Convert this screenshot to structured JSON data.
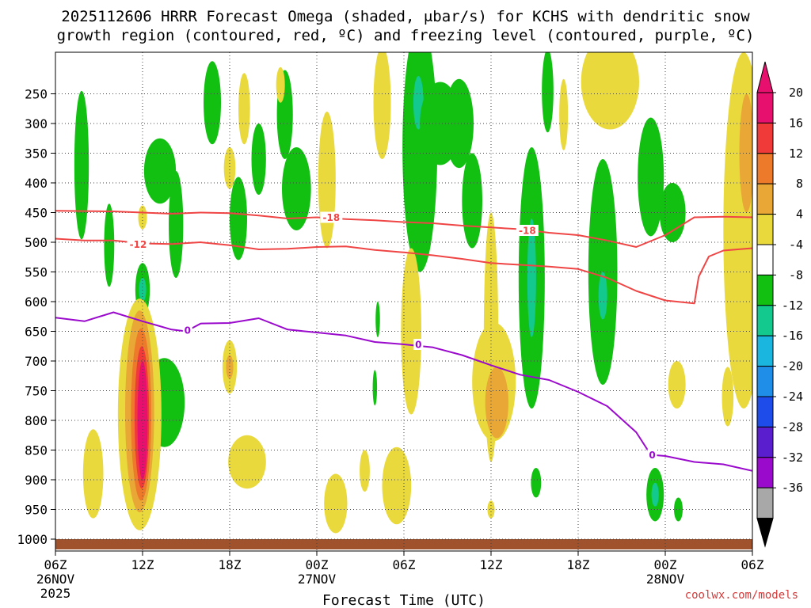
{
  "chart_data": {
    "type": "heatmap",
    "title_line1": "2025112606 HRRR Forecast Omega (shaded, μbar/s) for KCHS with dendritic snow",
    "title_line2": "growth region (contoured, red, ºC) and freezing level (contoured, purple, ºC)",
    "xlabel": "Forecast Time (UTC)",
    "credit": "coolwx.com/models",
    "x_range_hours": [
      0,
      48
    ],
    "y_range_mb": [
      180,
      1020
    ],
    "y_ticks": [
      {
        "mb": 250,
        "label": "250"
      },
      {
        "mb": 300,
        "label": "300"
      },
      {
        "mb": 350,
        "label": "350"
      },
      {
        "mb": 400,
        "label": "400"
      },
      {
        "mb": 450,
        "label": "450"
      },
      {
        "mb": 500,
        "label": "500"
      },
      {
        "mb": 550,
        "label": "550"
      },
      {
        "mb": 600,
        "label": "600"
      },
      {
        "mb": 650,
        "label": "650"
      },
      {
        "mb": 700,
        "label": "700"
      },
      {
        "mb": 750,
        "label": "750"
      },
      {
        "mb": 800,
        "label": "800"
      },
      {
        "mb": 850,
        "label": "850"
      },
      {
        "mb": 900,
        "label": "900"
      },
      {
        "mb": 950,
        "label": "950"
      },
      {
        "mb": 1000,
        "label": "1000"
      }
    ],
    "x_ticks": [
      {
        "hour": 0,
        "label": "06Z",
        "date": "26NOV",
        "year": "2025"
      },
      {
        "hour": 6,
        "label": "12Z"
      },
      {
        "hour": 12,
        "label": "18Z"
      },
      {
        "hour": 18,
        "label": "00Z",
        "date": "27NOV"
      },
      {
        "hour": 24,
        "label": "06Z"
      },
      {
        "hour": 30,
        "label": "12Z"
      },
      {
        "hour": 36,
        "label": "18Z"
      },
      {
        "hour": 42,
        "label": "00Z",
        "date": "28NOV"
      },
      {
        "hour": 48,
        "label": "06Z"
      }
    ],
    "colorbar": {
      "ticks": [
        "20",
        "16",
        "12",
        "8",
        "4",
        "-4",
        "-8",
        "-12",
        "-16",
        "-20",
        "-24",
        "-28",
        "-32",
        "-36"
      ],
      "colors": [
        "#e8106e",
        "#f03a3a",
        "#ec7a2a",
        "#e9a836",
        "#e9d93c",
        "#ffffff",
        "#12c012",
        "#14c98e",
        "#1ab6e0",
        "#1e8ee8",
        "#1e4cea",
        "#5a1ecf",
        "#9a0acc",
        "#a8a8a8"
      ],
      "top_color": "#e8106e",
      "bottom_color": "#000000"
    },
    "contours": [
      {
        "name": "-18",
        "color": "#ef4545",
        "hours": [
          0,
          4,
          8,
          10,
          12,
          14,
          16,
          18,
          20,
          22,
          24,
          26,
          28,
          30,
          32,
          34,
          36,
          38,
          40,
          42,
          44,
          46,
          48
        ],
        "mb": [
          447,
          448,
          452,
          450,
          451,
          455,
          460,
          458,
          461,
          463,
          466,
          468,
          472,
          475,
          478,
          484,
          488,
          497,
          508,
          488,
          458,
          457,
          458
        ]
      },
      {
        "name": "-12",
        "color": "#ef4545",
        "hours": [
          0,
          2,
          4,
          6,
          8,
          10,
          12,
          14,
          16,
          18,
          20,
          22,
          24,
          26,
          28,
          30,
          32,
          34,
          36,
          38,
          40,
          42,
          44,
          44.3,
          45,
          46,
          48
        ],
        "mb": [
          494,
          497,
          497,
          502,
          503,
          500,
          505,
          512,
          511,
          508,
          507,
          513,
          517,
          522,
          528,
          535,
          538,
          541,
          545,
          560,
          582,
          598,
          603,
          558,
          524,
          514,
          510
        ]
      },
      {
        "name": "0",
        "color": "#9a0acc",
        "hours": [
          0,
          2,
          4,
          6,
          7,
          8,
          9,
          10,
          12,
          14,
          16,
          18,
          20,
          22,
          24,
          26,
          28,
          30,
          32,
          34,
          36,
          38,
          40,
          41,
          42,
          44,
          46,
          48
        ],
        "mb": [
          627,
          633,
          618,
          633,
          640,
          647,
          650,
          637,
          636,
          628,
          647,
          652,
          657,
          668,
          672,
          677,
          690,
          707,
          723,
          732,
          752,
          776,
          820,
          858,
          860,
          870,
          874,
          885
        ]
      }
    ],
    "contour_labels": [
      {
        "text": "-18",
        "hour": 19,
        "mb": 458
      },
      {
        "text": "-18",
        "hour": 32.5,
        "mb": 480
      },
      {
        "text": "-12",
        "hour": 5.7,
        "mb": 503
      },
      {
        "text": "0",
        "hour": 9.1,
        "mb": 648
      },
      {
        "text": "0",
        "hour": 25,
        "mb": 672
      },
      {
        "text": "0",
        "hour": 41.1,
        "mb": 858
      }
    ],
    "features": [
      {
        "h": 1.8,
        "mb": 370,
        "w": 0.5,
        "d": 250,
        "v": -6
      },
      {
        "h": 3.7,
        "mb": 505,
        "w": 0.35,
        "d": 140,
        "v": -6
      },
      {
        "h": 6.0,
        "mb": 580,
        "w": 0.5,
        "d": 90,
        "v": -6
      },
      {
        "h": 6.0,
        "mb": 580,
        "w": 0.25,
        "d": 40,
        "v": -10
      },
      {
        "h": 6.0,
        "mb": 458,
        "w": 0.3,
        "d": 40,
        "v": 6
      },
      {
        "h": 7.2,
        "mb": 380,
        "w": 1.1,
        "d": 110,
        "v": -6
      },
      {
        "h": 8.3,
        "mb": 470,
        "w": 0.5,
        "d": 180,
        "v": -6
      },
      {
        "h": 7.5,
        "mb": 770,
        "w": 1.4,
        "d": 150,
        "v": -6
      },
      {
        "h": 10.8,
        "mb": 265,
        "w": 0.6,
        "d": 140,
        "v": -6
      },
      {
        "h": 12.0,
        "mb": 375,
        "w": 0.4,
        "d": 70,
        "v": 6
      },
      {
        "h": 13.0,
        "mb": 275,
        "w": 0.4,
        "d": 120,
        "v": 6
      },
      {
        "h": 14.0,
        "mb": 360,
        "w": 0.5,
        "d": 120,
        "v": -6
      },
      {
        "h": 12.6,
        "mb": 460,
        "w": 0.6,
        "d": 140,
        "v": -6
      },
      {
        "h": 15.8,
        "mb": 285,
        "w": 0.55,
        "d": 150,
        "v": -6
      },
      {
        "h": 16.6,
        "mb": 410,
        "w": 1.0,
        "d": 140,
        "v": -6
      },
      {
        "h": 18.7,
        "mb": 395,
        "w": 0.6,
        "d": 230,
        "v": 6
      },
      {
        "h": 22.5,
        "mb": 265,
        "w": 0.6,
        "d": 190,
        "v": 6
      },
      {
        "h": 25.1,
        "mb": 340,
        "w": 1.2,
        "d": 420,
        "v": -6
      },
      {
        "h": 25.0,
        "mb": 265,
        "w": 0.35,
        "d": 90,
        "v": -10
      },
      {
        "h": 26.5,
        "mb": 300,
        "w": 1.4,
        "d": 140,
        "v": -6
      },
      {
        "h": 28.7,
        "mb": 430,
        "w": 0.7,
        "d": 160,
        "v": -6
      },
      {
        "h": 27.8,
        "mb": 300,
        "w": 1.0,
        "d": 150,
        "v": -6
      },
      {
        "h": 24.5,
        "mb": 650,
        "w": 0.7,
        "d": 280,
        "v": 6
      },
      {
        "h": 30.0,
        "mb": 660,
        "w": 0.5,
        "d": 420,
        "v": 6
      },
      {
        "h": 30.2,
        "mb": 735,
        "w": 1.5,
        "d": 200,
        "v": 6
      },
      {
        "h": 30.4,
        "mb": 770,
        "w": 0.8,
        "d": 120,
        "v": 10
      },
      {
        "h": 33.9,
        "mb": 245,
        "w": 0.4,
        "d": 140,
        "v": -6
      },
      {
        "h": 35.0,
        "mb": 285,
        "w": 0.3,
        "d": 120,
        "v": 6
      },
      {
        "h": 32.8,
        "mb": 560,
        "w": 0.9,
        "d": 440,
        "v": -6
      },
      {
        "h": 32.8,
        "mb": 560,
        "w": 0.3,
        "d": 200,
        "v": -10
      },
      {
        "h": 37.7,
        "mb": 550,
        "w": 1.0,
        "d": 380,
        "v": -6
      },
      {
        "h": 37.7,
        "mb": 590,
        "w": 0.3,
        "d": 80,
        "v": -10
      },
      {
        "h": 38.2,
        "mb": 230,
        "w": 2.0,
        "d": 160,
        "v": 6
      },
      {
        "h": 41.0,
        "mb": 390,
        "w": 0.9,
        "d": 200,
        "v": -6
      },
      {
        "h": 42.5,
        "mb": 450,
        "w": 0.9,
        "d": 100,
        "v": -6
      },
      {
        "h": 41.3,
        "mb": 925,
        "w": 0.6,
        "d": 90,
        "v": -6
      },
      {
        "h": 41.3,
        "mb": 925,
        "w": 0.25,
        "d": 40,
        "v": -10
      },
      {
        "h": 42.9,
        "mb": 950,
        "w": 0.3,
        "d": 40,
        "v": -6
      },
      {
        "h": 42.8,
        "mb": 740,
        "w": 0.6,
        "d": 80,
        "v": 6
      },
      {
        "h": 47.4,
        "mb": 480,
        "w": 1.4,
        "d": 600,
        "v": 6
      },
      {
        "h": 47.6,
        "mb": 350,
        "w": 0.5,
        "d": 200,
        "v": 10
      },
      {
        "h": 46.3,
        "mb": 760,
        "w": 0.4,
        "d": 100,
        "v": 6
      },
      {
        "h": 33.1,
        "mb": 905,
        "w": 0.35,
        "d": 50,
        "v": -6
      },
      {
        "h": 22.2,
        "mb": 630,
        "w": 0.15,
        "d": 60,
        "v": -6
      },
      {
        "h": 22.0,
        "mb": 745,
        "w": 0.15,
        "d": 60,
        "v": -6
      },
      {
        "h": 13.2,
        "mb": 870,
        "w": 1.3,
        "d": 90,
        "v": 6
      },
      {
        "h": 12.0,
        "mb": 710,
        "w": 0.5,
        "d": 90,
        "v": 6
      },
      {
        "h": 12.0,
        "mb": 710,
        "w": 0.25,
        "d": 40,
        "v": 10
      },
      {
        "h": 2.6,
        "mb": 890,
        "w": 0.7,
        "d": 150,
        "v": 6
      },
      {
        "h": 5.8,
        "mb": 790,
        "w": 1.5,
        "d": 390,
        "v": 6
      },
      {
        "h": 5.8,
        "mb": 785,
        "w": 1.0,
        "d": 340,
        "v": 10
      },
      {
        "h": 5.9,
        "mb": 790,
        "w": 0.7,
        "d": 290,
        "v": 14
      },
      {
        "h": 5.95,
        "mb": 795,
        "w": 0.5,
        "d": 240,
        "v": 18
      },
      {
        "h": 6.0,
        "mb": 800,
        "w": 0.35,
        "d": 200,
        "v": 22
      },
      {
        "h": 19.3,
        "mb": 940,
        "w": 0.8,
        "d": 100,
        "v": 6
      },
      {
        "h": 21.3,
        "mb": 885,
        "w": 0.35,
        "d": 70,
        "v": 6
      },
      {
        "h": 23.5,
        "mb": 910,
        "w": 1.0,
        "d": 130,
        "v": 6
      },
      {
        "h": 15.5,
        "mb": 235,
        "w": 0.3,
        "d": 60,
        "v": 6
      },
      {
        "h": 30.0,
        "mb": 950,
        "w": 0.25,
        "d": 30,
        "v": 6
      }
    ]
  }
}
